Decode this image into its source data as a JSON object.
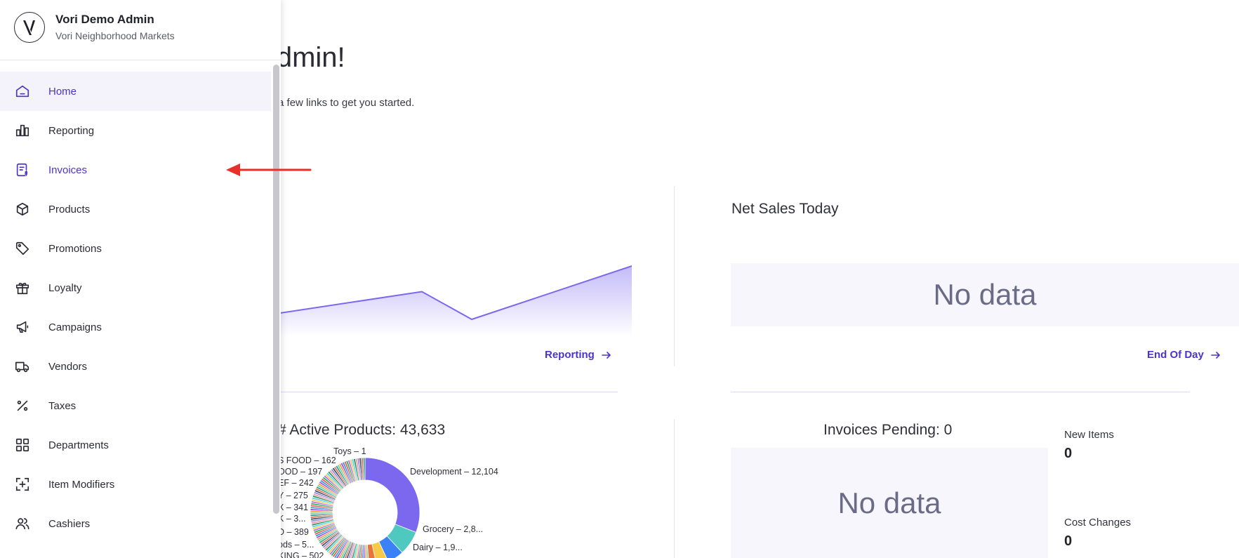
{
  "org": {
    "name": "Vori Demo Admin",
    "subtitle": "Vori Neighborhood Markets"
  },
  "nav": {
    "items": [
      {
        "label": "Home",
        "icon": "home-icon"
      },
      {
        "label": "Reporting",
        "icon": "bar-chart-icon"
      },
      {
        "label": "Invoices",
        "icon": "invoice-icon"
      },
      {
        "label": "Products",
        "icon": "box-icon"
      },
      {
        "label": "Promotions",
        "icon": "tag-icon"
      },
      {
        "label": "Loyalty",
        "icon": "gift-icon"
      },
      {
        "label": "Campaigns",
        "icon": "megaphone-icon"
      },
      {
        "label": "Vendors",
        "icon": "truck-icon"
      },
      {
        "label": "Taxes",
        "icon": "percent-icon"
      },
      {
        "label": "Departments",
        "icon": "grid-icon"
      },
      {
        "label": "Item Modifiers",
        "icon": "add-modifier-icon"
      },
      {
        "label": "Cashiers",
        "icon": "users-icon"
      }
    ],
    "active": "Home",
    "highlighted": "Invoices"
  },
  "main": {
    "welcome_partial": "o Admin!",
    "subtitle_partial": "here are a few links to get you started.",
    "reporting_link": "Reporting",
    "net_sales_title": "Net Sales Today",
    "no_data": "No data",
    "end_of_day_link": "End Of Day",
    "active_products_partial": "# Active Products: 43,633",
    "invoices_pending_title": "Invoices Pending: 0",
    "new_items_label": "New Items",
    "new_items_value": "0",
    "cost_changes_label": "Cost Changes",
    "cost_changes_value": "0"
  },
  "colors": {
    "accent": "#4a34c9",
    "line": "#7b68ee",
    "annotation_arrow": "#e8302a"
  },
  "chart_data": [
    {
      "type": "area",
      "title": "",
      "x": [
        0,
        1,
        2,
        3
      ],
      "values": [
        0.0,
        0.52,
        0.0,
        1.0
      ],
      "xlabel": "",
      "ylabel": ""
    },
    {
      "type": "pie",
      "title": "# Active Products: 43,633",
      "labels": [
        {
          "text": "Toys – 1",
          "value": 1
        },
        {
          "text": "Development – 12,104",
          "value": 12104
        },
        {
          "text": "Grocery – 2,8...",
          "value": 2800
        },
        {
          "text": "Dairy – 1,9...",
          "value": 1900
        },
        {
          "text": "S FOOD – 162",
          "value": 162
        },
        {
          "text": "OOD – 197",
          "value": 197
        },
        {
          "text": "EF – 242",
          "value": 242
        },
        {
          "text": "Y – 275",
          "value": 275
        },
        {
          "text": "X – 341",
          "value": 341
        },
        {
          "text": "K – 3...",
          "value": 300
        },
        {
          "text": "D – 389",
          "value": 389
        },
        {
          "text": "ods – 5...",
          "value": 500
        },
        {
          "text": "KING – 502",
          "value": 502
        }
      ]
    }
  ]
}
